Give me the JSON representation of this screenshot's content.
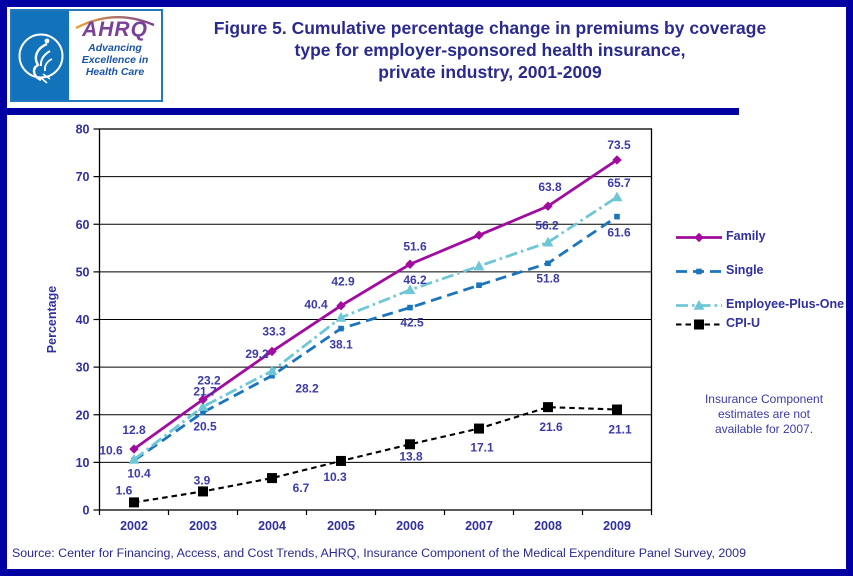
{
  "header": {
    "logo": {
      "org_abbr": "AHRQ",
      "tagline_lines": [
        "Advancing",
        "Excellence in",
        "Health Care"
      ],
      "seal_icon": "hhs-eagle-icon",
      "swoosh_icon": "swoosh-arc-icon",
      "hhs_panel_blue": "#1273BB",
      "ahrq_purple": "#7B4097",
      "tagline_blue": "#1A55A5"
    },
    "title_lines": [
      "Figure 5. Cumulative percentage change in premiums by coverage",
      "type for employer-sponsored health insurance,",
      "private industry, 2001-2009"
    ]
  },
  "note": {
    "lines": [
      "Insurance Component",
      "estimates are not",
      "available for 2007."
    ]
  },
  "footer": {
    "source": "Source: Center for Financing, Access, and Cost Trends, AHRQ, Insurance Component of the Medical Expenditure Panel Survey, 2009"
  },
  "colors": {
    "frame": "#0101A3",
    "title_text": "#29298F",
    "tick_text": "#3030A0",
    "data_label_text": "#3B3BA8",
    "axis": "#000000"
  },
  "chart_data": {
    "type": "line",
    "x_categories": [
      "2002",
      "2003",
      "2004",
      "2005",
      "2006",
      "2007",
      "2008",
      "2009"
    ],
    "ylabel": "Percentage",
    "ylim": [
      0,
      80
    ],
    "ytick_step": 10,
    "grid": true,
    "legend_position": "right",
    "series": [
      {
        "name": "Family",
        "color": "#A10C9E",
        "line_style": "solid",
        "marker": "diamond",
        "values": [
          12.8,
          23.2,
          33.3,
          42.9,
          51.6,
          57.7,
          63.8,
          73.5
        ],
        "labels": [
          "12.8",
          "23.2",
          "33.3",
          "42.9",
          "51.6",
          null,
          "63.8",
          "73.5"
        ],
        "label_offsets": [
          [
            0,
            -19
          ],
          [
            6,
            -19
          ],
          [
            2,
            -20
          ],
          [
            2,
            -24
          ],
          [
            5,
            -18
          ],
          null,
          [
            2,
            -19
          ],
          [
            2,
            -15
          ]
        ]
      },
      {
        "name": "Single",
        "color": "#1B75BC",
        "line_style": "long-dash",
        "marker": "small-square",
        "values": [
          10.4,
          20.5,
          28.2,
          38.1,
          42.5,
          47.2,
          51.8,
          61.6
        ],
        "labels": [
          "10.4",
          "20.5",
          "28.2",
          "38.1",
          "42.5",
          null,
          "51.8",
          "61.6"
        ],
        "label_offsets": [
          [
            5,
            13
          ],
          [
            2,
            14
          ],
          [
            35,
            13
          ],
          [
            0,
            16
          ],
          [
            2,
            15
          ],
          null,
          [
            0,
            15
          ],
          [
            2,
            16
          ]
        ]
      },
      {
        "name": "Employee-Plus-One",
        "color": "#6FC7D6",
        "line_style": "dash-dot",
        "marker": "triangle",
        "values": [
          10.6,
          21.7,
          29.2,
          40.4,
          46.2,
          51.2,
          56.2,
          65.7
        ],
        "labels": [
          "10.6",
          "21.7",
          "29.2",
          "40.4",
          "46.2",
          null,
          "56.2",
          "65.7"
        ],
        "label_offsets": [
          [
            -23,
            -9
          ],
          [
            2,
            -15
          ],
          [
            -15,
            -17
          ],
          [
            -25,
            -13
          ],
          [
            5,
            -10
          ],
          null,
          [
            -1,
            -17
          ],
          [
            2,
            -14
          ]
        ]
      },
      {
        "name": "CPI-U",
        "color": "#000000",
        "line_style": "short-dash",
        "marker": "square",
        "values": [
          1.6,
          3.9,
          6.7,
          10.3,
          13.8,
          17.1,
          21.6,
          21.1
        ],
        "labels": [
          "1.6",
          "3.9",
          "6.7",
          "10.3",
          "13.8",
          "17.1",
          "21.6",
          "21.1"
        ],
        "label_offsets": [
          [
            -10,
            -12
          ],
          [
            -1,
            -11
          ],
          [
            29,
            10
          ],
          [
            -6,
            16
          ],
          [
            1,
            12
          ],
          [
            3,
            19
          ],
          [
            3,
            20
          ],
          [
            3,
            20
          ]
        ]
      }
    ],
    "draw_order": [
      3,
      1,
      2,
      0
    ]
  }
}
